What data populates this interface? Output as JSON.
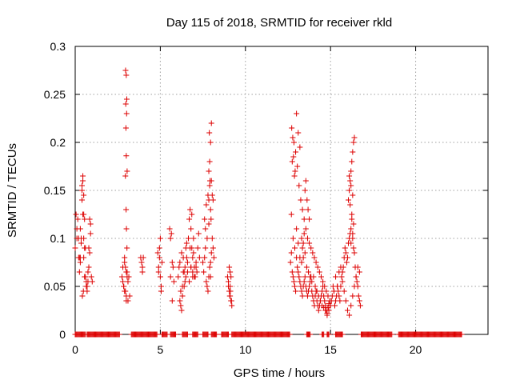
{
  "chart_data": {
    "type": "scatter",
    "title": "Day 115 of 2018, SRMTID for receiver rkld",
    "xlabel": "GPS time / hours",
    "ylabel": "SRMTID / TECUs",
    "xlim": [
      0,
      24.25
    ],
    "ylim": [
      0,
      0.3
    ],
    "xticks": [
      0,
      5,
      10,
      15,
      20
    ],
    "xtick_labels": [
      "0",
      "5",
      "10",
      "15",
      "20"
    ],
    "yticks": [
      0,
      0.05,
      0.1,
      0.15,
      0.2,
      0.25,
      0.3
    ],
    "ytick_labels": [
      "0",
      "0.05",
      "0.1",
      "0.15",
      "0.2",
      "0.25",
      "0.3"
    ],
    "grid": true,
    "marker": "plus",
    "color": "#dd0000",
    "series": [
      {
        "name": "SRMTID",
        "x": [
          0.0,
          0.05,
          0.1,
          0.15,
          0.2,
          0.25,
          0.3,
          0.35,
          0.4,
          0.45,
          0.5,
          0.55,
          0.6,
          0.65,
          0.7,
          0.75,
          0.8,
          0.85,
          0.9,
          0.95,
          1.0,
          0.1,
          0.2,
          0.3,
          0.4,
          0.5,
          0.6,
          0.7,
          0.8,
          0.9,
          0.25,
          0.35,
          0.45,
          0.55,
          0.65,
          0.75,
          0.85,
          0.3,
          0.4,
          0.5,
          0.45,
          0.42,
          0.48,
          0.5,
          0.55,
          2.75,
          2.8,
          2.85,
          2.9,
          2.95,
          3.0,
          3.05,
          3.1,
          3.15,
          3.2,
          2.8,
          2.9,
          3.0,
          3.1,
          2.85,
          2.95,
          3.05,
          2.9,
          3.0,
          2.95,
          3.0,
          3.05,
          2.98,
          3.02,
          2.97,
          3.03,
          3.0,
          2.96,
          2.99,
          3.01,
          3.04,
          3.85,
          3.9,
          3.95,
          4.0,
          3.95,
          4.85,
          4.9,
          4.95,
          5.0,
          5.05,
          5.1,
          4.9,
          5.0,
          4.95,
          5.05,
          5.55,
          5.6,
          5.65,
          5.7,
          5.75,
          5.6,
          5.7,
          5.8,
          6.05,
          6.1,
          6.15,
          6.2,
          6.25,
          6.3,
          6.35,
          6.4,
          6.45,
          6.5,
          6.55,
          6.6,
          6.65,
          6.7,
          6.75,
          6.8,
          6.85,
          6.9,
          6.95,
          7.0,
          7.05,
          7.1,
          7.15,
          7.2,
          7.25,
          7.3,
          6.2,
          6.3,
          6.4,
          6.5,
          6.6,
          6.7,
          6.8,
          6.9,
          7.0,
          7.1,
          6.35,
          6.45,
          6.55,
          6.25,
          6.15,
          6.85,
          6.95,
          6.75,
          6.8,
          6.9,
          7.5,
          7.55,
          7.6,
          7.65,
          7.7,
          7.75,
          7.8,
          7.85,
          7.9,
          7.95,
          8.0,
          8.05,
          8.1,
          8.15,
          7.6,
          7.7,
          7.8,
          7.9,
          8.0,
          7.65,
          7.75,
          7.85,
          7.95,
          7.85,
          7.9,
          7.95,
          8.0,
          7.88,
          7.92,
          7.85,
          7.98,
          8.05,
          8.1,
          7.95,
          8.95,
          9.0,
          9.05,
          9.1,
          9.15,
          9.2,
          9.0,
          9.1,
          9.05,
          9.15,
          9.1,
          9.12,
          9.08,
          9.18,
          12.65,
          12.7,
          12.75,
          12.8,
          12.85,
          12.9,
          12.95,
          13.0,
          13.05,
          13.1,
          13.15,
          13.2,
          13.25,
          13.3,
          13.35,
          13.4,
          13.45,
          13.5,
          13.55,
          13.6,
          13.65,
          13.7,
          13.75,
          13.8,
          13.85,
          13.9,
          13.95,
          14.0,
          14.05,
          14.1,
          14.15,
          14.2,
          14.25,
          14.3,
          14.35,
          14.4,
          14.45,
          14.5,
          14.55,
          14.6,
          14.65,
          14.7,
          14.75,
          14.8,
          14.85,
          14.9,
          14.95,
          15.0,
          12.7,
          12.8,
          12.9,
          13.0,
          13.1,
          13.2,
          13.3,
          13.4,
          13.5,
          13.6,
          13.7,
          13.8,
          13.9,
          14.0,
          14.1,
          14.2,
          14.3,
          14.4,
          14.5,
          14.6,
          14.7,
          14.8,
          14.9,
          12.75,
          12.85,
          12.95,
          13.05,
          13.15,
          13.25,
          13.35,
          13.45,
          13.55,
          13.65,
          13.75,
          13.85,
          13.95,
          14.05,
          14.15,
          14.25,
          14.35,
          14.45,
          14.55,
          14.65,
          14.75,
          14.85,
          12.72,
          12.78,
          12.82,
          12.88,
          12.92,
          13.0,
          13.1,
          13.2,
          13.5,
          13.55,
          13.62,
          13.68,
          13.75,
          13.3,
          13.35,
          13.4,
          13.45,
          15.05,
          15.1,
          15.15,
          15.2,
          15.25,
          15.3,
          15.35,
          15.4,
          15.45,
          15.5,
          15.55,
          15.6,
          15.65,
          15.7,
          15.75,
          15.8,
          15.85,
          15.9,
          15.95,
          16.0,
          16.05,
          16.1,
          16.15,
          16.2,
          16.25,
          16.3,
          16.35,
          16.4,
          16.45,
          16.5,
          16.55,
          16.6,
          16.65,
          16.7,
          16.75,
          15.2,
          15.3,
          15.4,
          15.5,
          15.6,
          15.7,
          15.8,
          15.9,
          16.0,
          16.1,
          16.2,
          16.3,
          16.4,
          16.5,
          16.6,
          16.7,
          16.05,
          16.1,
          16.15,
          16.2,
          16.25,
          16.3,
          16.35,
          16.4,
          16.1,
          16.2,
          16.3,
          16.25,
          16.15,
          16.35,
          16.3,
          16.2
        ],
        "y": [
          0.09,
          0.125,
          0.1,
          0.12,
          0.08,
          0.065,
          0.08,
          0.1,
          0.155,
          0.16,
          0.125,
          0.06,
          0.09,
          0.05,
          0.045,
          0.055,
          0.07,
          0.12,
          0.115,
          0.06,
          0.055,
          0.11,
          0.1,
          0.075,
          0.14,
          0.145,
          0.06,
          0.05,
          0.09,
          0.105,
          0.08,
          0.095,
          0.165,
          0.12,
          0.055,
          0.065,
          0.085,
          0.11,
          0.15,
          0.1,
          0.125,
          0.04,
          0.045,
          0.08,
          0.09,
          0.06,
          0.07,
          0.05,
          0.08,
          0.045,
          0.035,
          0.065,
          0.055,
          0.06,
          0.04,
          0.055,
          0.075,
          0.04,
          0.035,
          0.05,
          0.07,
          0.06,
          0.045,
          0.065,
          0.165,
          0.186,
          0.17,
          0.215,
          0.23,
          0.24,
          0.245,
          0.27,
          0.275,
          0.13,
          0.11,
          0.09,
          0.08,
          0.075,
          0.065,
          0.08,
          0.07,
          0.085,
          0.07,
          0.09,
          0.06,
          0.05,
          0.075,
          0.065,
          0.1,
          0.08,
          0.045,
          0.11,
          0.1,
          0.105,
          0.075,
          0.07,
          0.06,
          0.035,
          0.055,
          0.06,
          0.07,
          0.075,
          0.045,
          0.085,
          0.05,
          0.08,
          0.065,
          0.07,
          0.09,
          0.095,
          0.075,
          0.1,
          0.12,
          0.13,
          0.11,
          0.09,
          0.08,
          0.085,
          0.07,
          0.06,
          0.075,
          0.065,
          0.09,
          0.105,
          0.08,
          0.03,
          0.04,
          0.05,
          0.06,
          0.065,
          0.055,
          0.07,
          0.065,
          0.06,
          0.07,
          0.065,
          0.055,
          0.08,
          0.025,
          0.035,
          0.125,
          0.1,
          0.09,
          0.07,
          0.06,
          0.075,
          0.065,
          0.08,
          0.09,
          0.055,
          0.05,
          0.045,
          0.06,
          0.07,
          0.075,
          0.085,
          0.1,
          0.09,
          0.08,
          0.12,
          0.135,
          0.145,
          0.155,
          0.16,
          0.11,
          0.1,
          0.115,
          0.13,
          0.17,
          0.18,
          0.2,
          0.22,
          0.21,
          0.16,
          0.14,
          0.12,
          0.145,
          0.14,
          0.06,
          0.06,
          0.05,
          0.045,
          0.04,
          0.035,
          0.03,
          0.055,
          0.065,
          0.07,
          0.06,
          0.05,
          0.045,
          0.04,
          0.035,
          0.075,
          0.085,
          0.065,
          0.06,
          0.055,
          0.05,
          0.045,
          0.08,
          0.07,
          0.065,
          0.06,
          0.055,
          0.05,
          0.045,
          0.04,
          0.05,
          0.055,
          0.06,
          0.05,
          0.045,
          0.04,
          0.045,
          0.05,
          0.055,
          0.06,
          0.045,
          0.04,
          0.035,
          0.03,
          0.04,
          0.045,
          0.035,
          0.03,
          0.025,
          0.03,
          0.035,
          0.04,
          0.045,
          0.05,
          0.04,
          0.035,
          0.03,
          0.025,
          0.02,
          0.028,
          0.032,
          0.035,
          0.03,
          0.125,
          0.1,
          0.09,
          0.11,
          0.095,
          0.08,
          0.075,
          0.095,
          0.085,
          0.07,
          0.065,
          0.06,
          0.055,
          0.06,
          0.05,
          0.045,
          0.04,
          0.035,
          0.03,
          0.028,
          0.025,
          0.022,
          0.025,
          0.18,
          0.2,
          0.19,
          0.175,
          0.155,
          0.14,
          0.13,
          0.12,
          0.11,
          0.1,
          0.095,
          0.09,
          0.085,
          0.08,
          0.075,
          0.07,
          0.065,
          0.06,
          0.055,
          0.05,
          0.045,
          0.04,
          0.215,
          0.205,
          0.185,
          0.165,
          0.17,
          0.23,
          0.21,
          0.195,
          0.15,
          0.16,
          0.14,
          0.13,
          0.12,
          0.1,
          0.09,
          0.08,
          0.105,
          0.035,
          0.04,
          0.05,
          0.045,
          0.03,
          0.035,
          0.04,
          0.05,
          0.045,
          0.04,
          0.035,
          0.05,
          0.06,
          0.065,
          0.07,
          0.08,
          0.09,
          0.085,
          0.075,
          0.08,
          0.095,
          0.1,
          0.105,
          0.11,
          0.12,
          0.1,
          0.09,
          0.085,
          0.07,
          0.06,
          0.055,
          0.05,
          0.04,
          0.035,
          0.03,
          0.045,
          0.06,
          0.05,
          0.065,
          0.07,
          0.055,
          0.045,
          0.035,
          0.025,
          0.02,
          0.03,
          0.04,
          0.05,
          0.06,
          0.07,
          0.065,
          0.14,
          0.15,
          0.16,
          0.17,
          0.18,
          0.19,
          0.2,
          0.205,
          0.165,
          0.155,
          0.145,
          0.125,
          0.135,
          0.115,
          0.105,
          0.095
        ]
      },
      {
        "name": "zero baseline",
        "x_ranges": [
          [
            0.0,
            0.6
          ],
          [
            0.7,
            1.0
          ],
          [
            1.05,
            2.6
          ],
          [
            3.3,
            4.8
          ],
          [
            5.1,
            5.4
          ],
          [
            5.6,
            5.9
          ],
          [
            6.3,
            6.6
          ],
          [
            6.9,
            7.2
          ],
          [
            7.5,
            7.8
          ],
          [
            8.0,
            8.3
          ],
          [
            8.6,
            9.0
          ],
          [
            9.2,
            12.6
          ],
          [
            13.6,
            13.8
          ],
          [
            14.5,
            14.6
          ],
          [
            14.8,
            14.9
          ],
          [
            15.3,
            15.7
          ],
          [
            16.8,
            18.6
          ],
          [
            19.0,
            22.7
          ]
        ],
        "y": 0
      }
    ]
  }
}
